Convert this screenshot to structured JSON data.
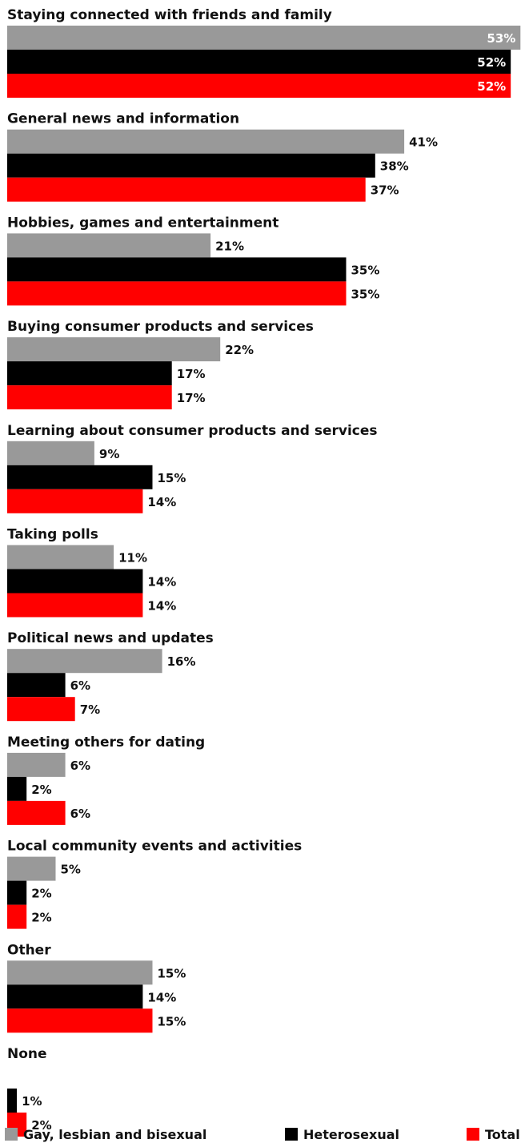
{
  "chart_data": {
    "type": "bar",
    "orientation": "horizontal",
    "title": "",
    "xlabel": "",
    "ylabel": "",
    "xlim": [
      0,
      53
    ],
    "grid": false,
    "legend_position": "bottom",
    "value_suffix": "%",
    "categories": [
      "Staying connected with friends and family",
      "General news and information",
      "Hobbies, games and entertainment",
      "Buying consumer products and services",
      "Learning about consumer products and services",
      "Taking polls",
      "Political news and updates",
      "Meeting others for dating",
      "Local community events and activities",
      "Other",
      "None"
    ],
    "series": [
      {
        "name": "Gay, lesbian and bisexual",
        "color": "#999999",
        "values": [
          53,
          41,
          21,
          22,
          9,
          11,
          16,
          6,
          5,
          15,
          null
        ]
      },
      {
        "name": "Heterosexual",
        "color": "#000000",
        "values": [
          52,
          38,
          35,
          17,
          15,
          14,
          6,
          2,
          2,
          14,
          1
        ]
      },
      {
        "name": "Total",
        "color": "#ff0000",
        "values": [
          52,
          37,
          35,
          17,
          14,
          14,
          7,
          6,
          2,
          15,
          2
        ]
      }
    ]
  }
}
